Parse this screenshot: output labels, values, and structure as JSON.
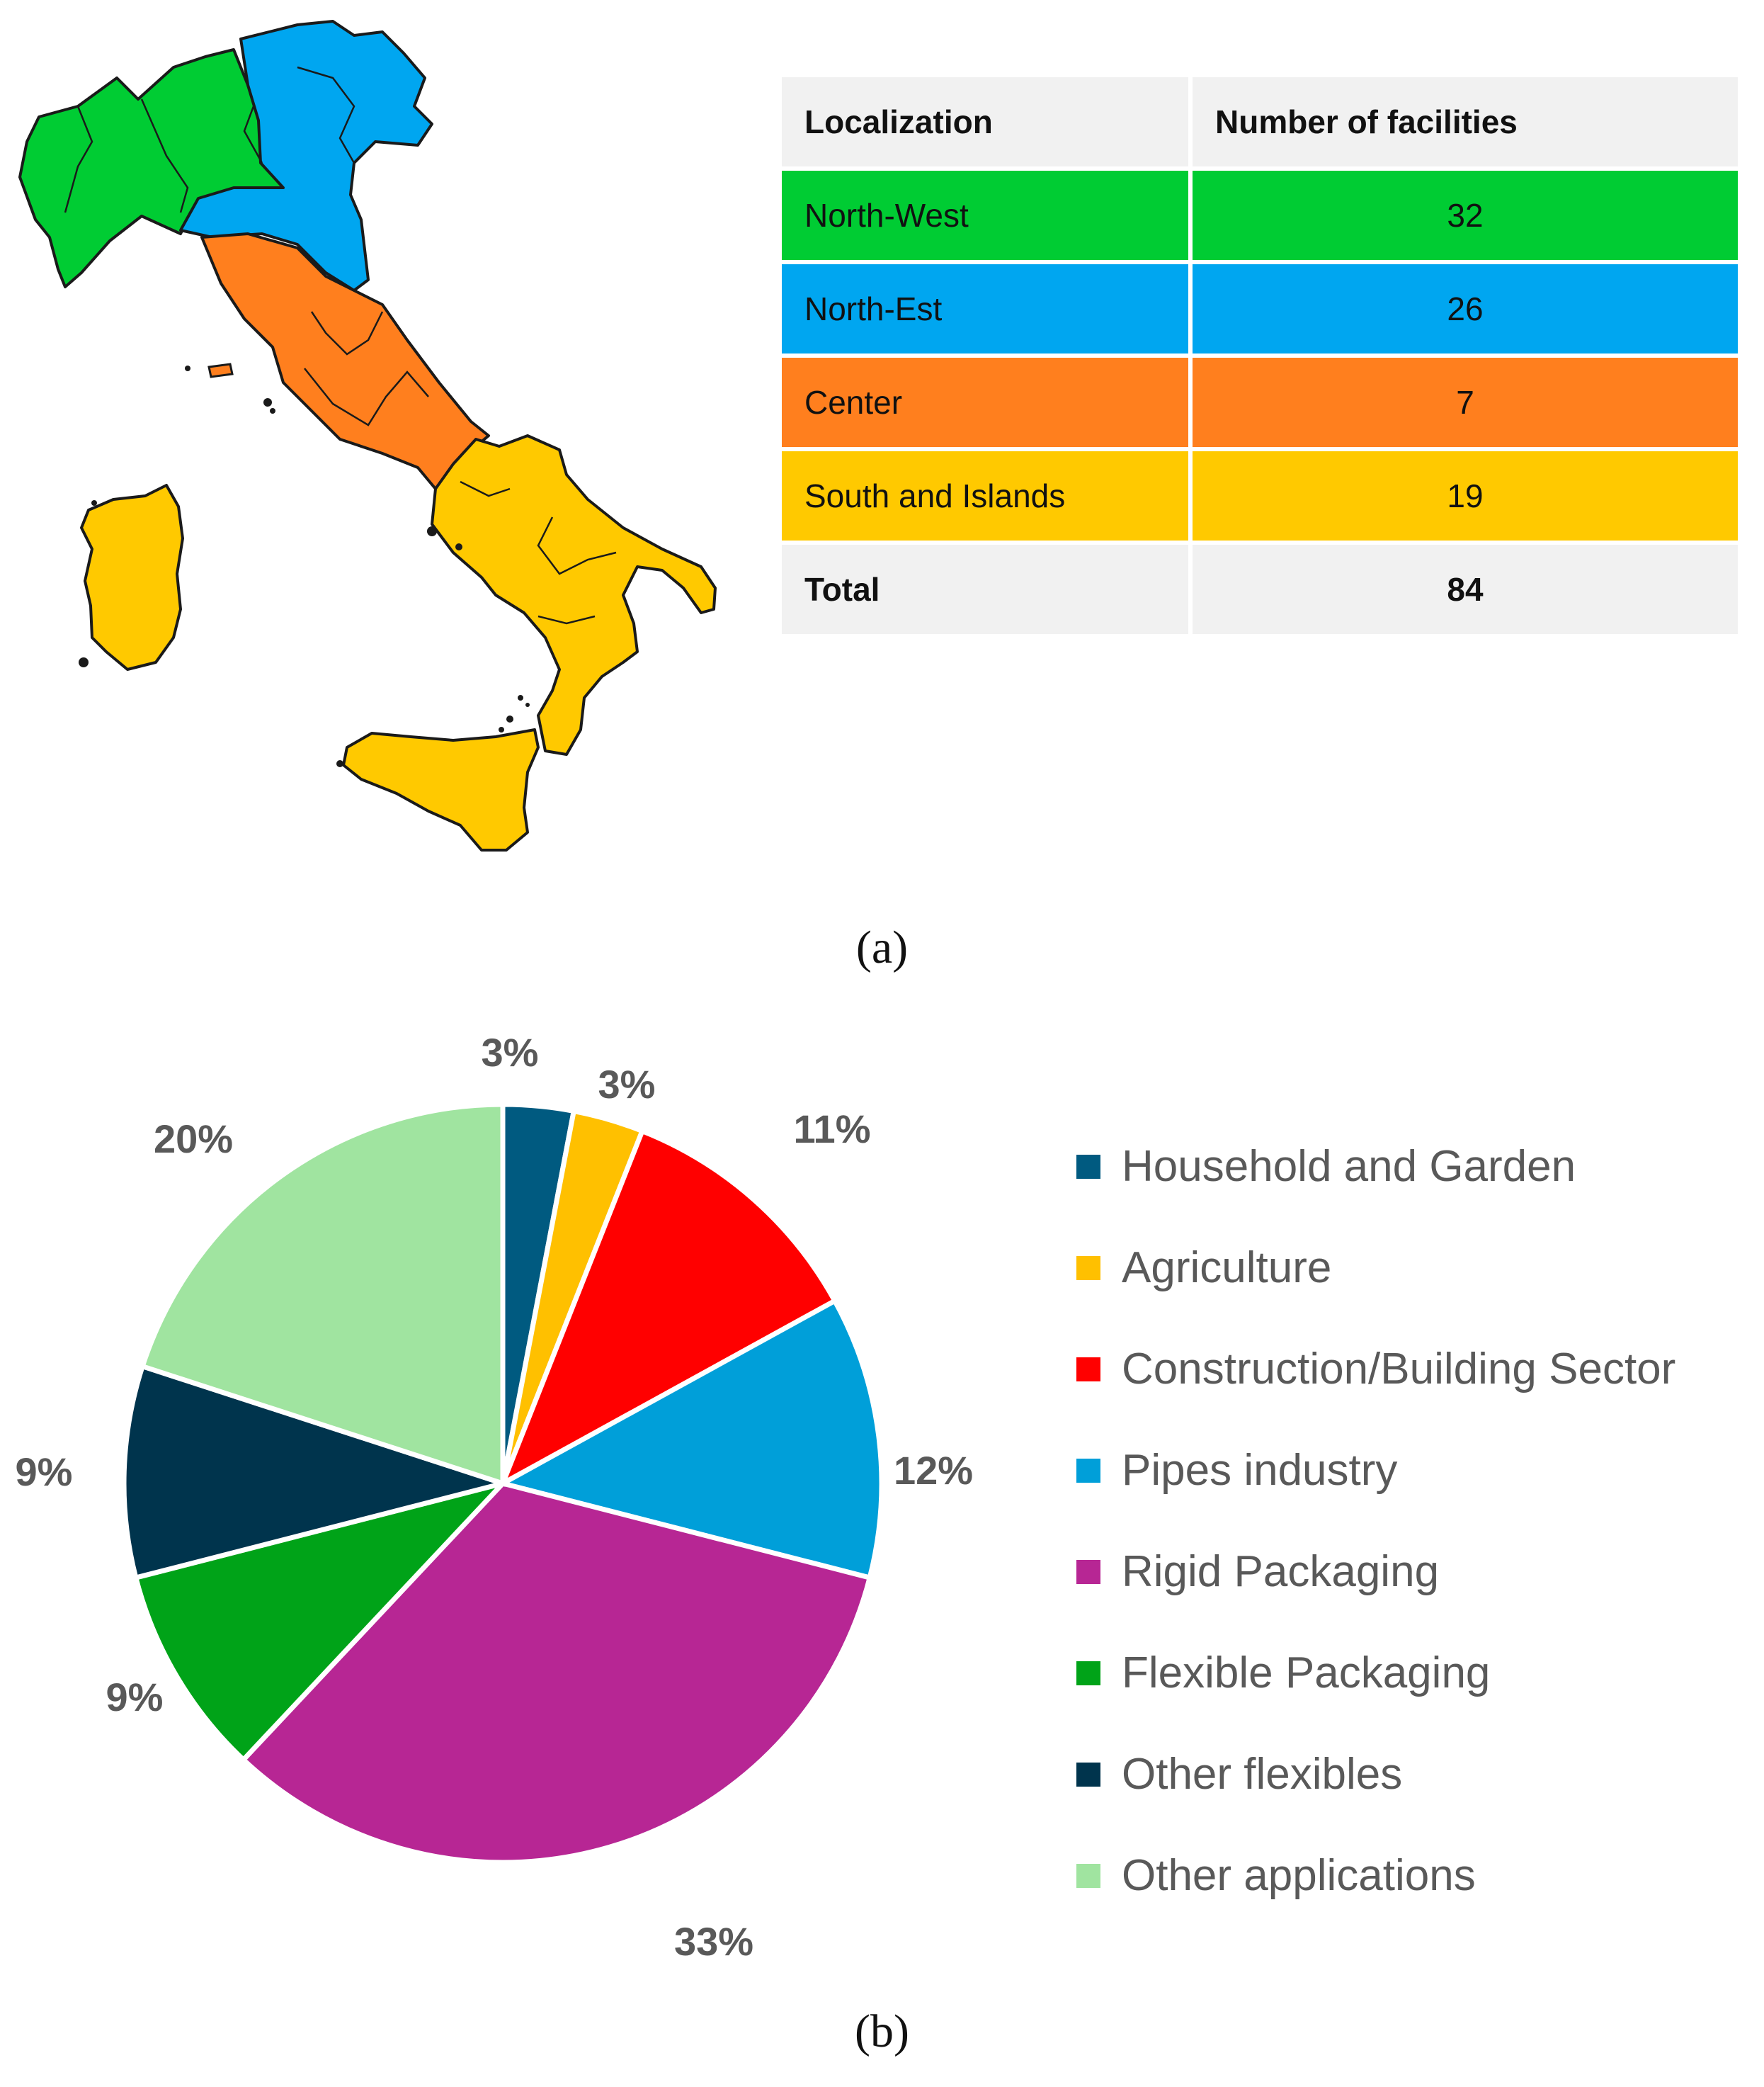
{
  "map": {
    "region_colors": {
      "North-West": "#00cc33",
      "North-Est": "#00a6f0",
      "Center": "#ff7f1e",
      "South and Islands": "#ffc900"
    }
  },
  "table": {
    "headers": [
      "Localization",
      "Number of facilities"
    ],
    "rows": [
      {
        "region": "North-West",
        "count": "32",
        "color": "#00cc33"
      },
      {
        "region": "North-Est",
        "count": "26",
        "color": "#00a6f0"
      },
      {
        "region": "Center",
        "count": "7",
        "color": "#ff7f1e"
      },
      {
        "region": "South and Islands",
        "count": "19",
        "color": "#ffc900"
      }
    ],
    "total": {
      "label": "Total",
      "count": "84"
    }
  },
  "captions": {
    "a": "(a)",
    "b": "(b)"
  },
  "chart_data": {
    "type": "pie",
    "categories": [
      "Household and Garden",
      "Agriculture",
      "Construction/Building Sector",
      "Pipes industry",
      "Rigid Packaging",
      "Flexible Packaging",
      "Other flexibles",
      "Other applications"
    ],
    "values": [
      3,
      3,
      11,
      12,
      33,
      9,
      9,
      20
    ],
    "labels": [
      "3%",
      "3%",
      "11%",
      "12%",
      "33%",
      "9%",
      "9%",
      "20%"
    ],
    "colors": [
      "#005a80",
      "#ffc000",
      "#ff0000",
      "#009fd9",
      "#b72694",
      "#00a318",
      "#00344d",
      "#a0e4a0"
    ],
    "legend_position": "right"
  }
}
